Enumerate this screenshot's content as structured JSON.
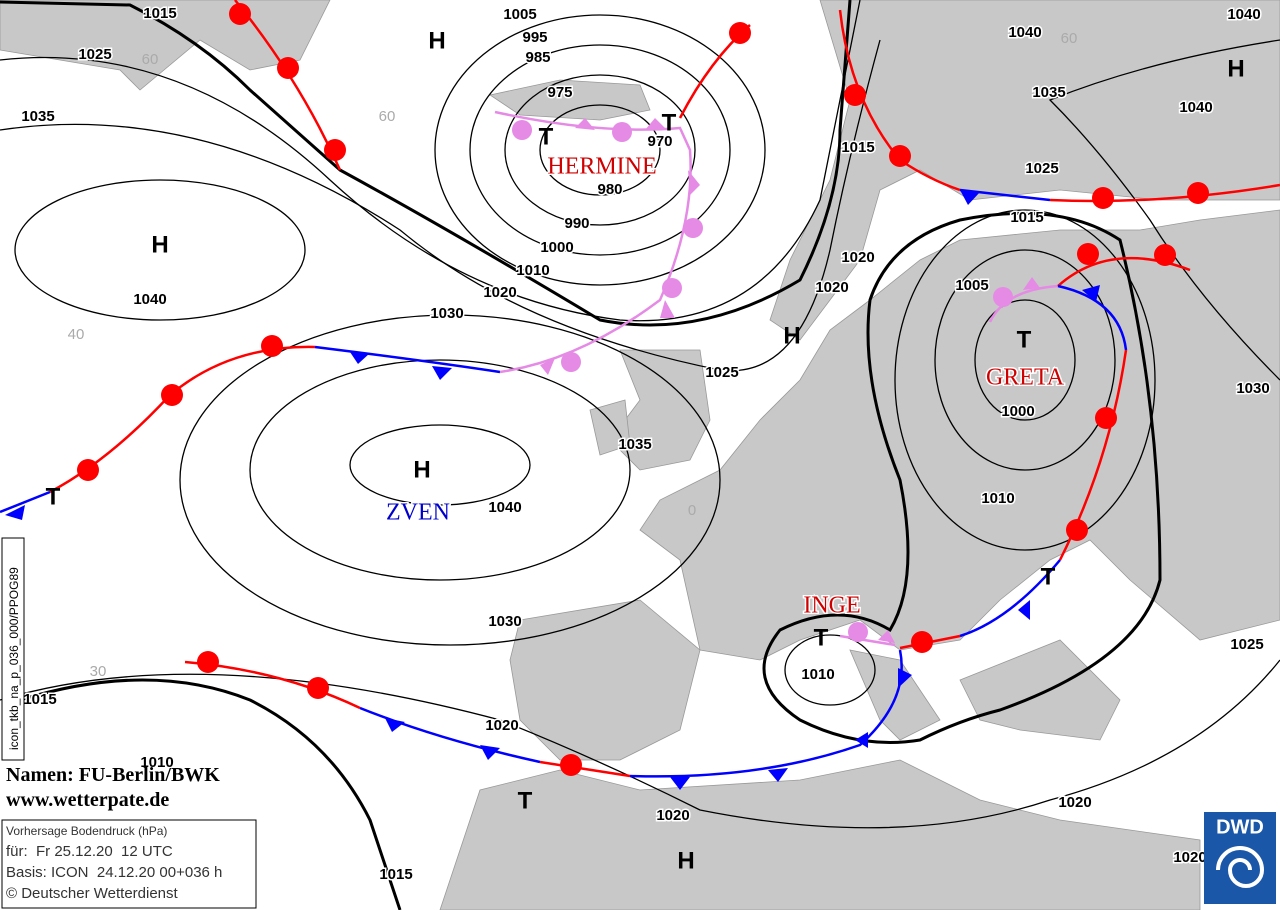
{
  "isobar_labels": [
    "1015",
    "1025",
    "1035",
    "1040",
    "1030",
    "1020",
    "1010",
    "1000",
    "990",
    "980",
    "970",
    "975",
    "985",
    "995",
    "1005",
    "1015",
    "1020",
    "1020",
    "1025",
    "1035",
    "1040",
    "1030",
    "1020",
    "1015",
    "1010",
    "1020",
    "1015",
    "1010",
    "1010",
    "1000",
    "1005",
    "1015",
    "1025",
    "1035",
    "1040",
    "1040",
    "1040",
    "1030",
    "1025",
    "1020",
    "1020"
  ],
  "pressure_centers": [
    "H",
    "H",
    "H",
    "H",
    "H",
    "H",
    "T",
    "T",
    "T",
    "T",
    "T",
    "T",
    "T"
  ],
  "names": {
    "hermine": "HERMINE",
    "greta": "GRETA",
    "zven": "ZVEN",
    "inge": "INGE"
  },
  "grid_labels": [
    "60",
    "60",
    "40",
    "30",
    "0",
    "60"
  ],
  "credits": {
    "names": "Namen: FU-Berlin/BWK",
    "website": "www.wetterpate.de"
  },
  "info_box": {
    "title": "Vorhersage Bodendruck (hPa)",
    "valid": "für:  Fr 25.12.20  12 UTC",
    "base": "Basis: ICON  24.12.20 00+036 h",
    "copyright": "© Deutscher Wetterdienst"
  },
  "product_code": "icon_tkb_na_p_036_000/PPOG89",
  "logo": "DWD"
}
